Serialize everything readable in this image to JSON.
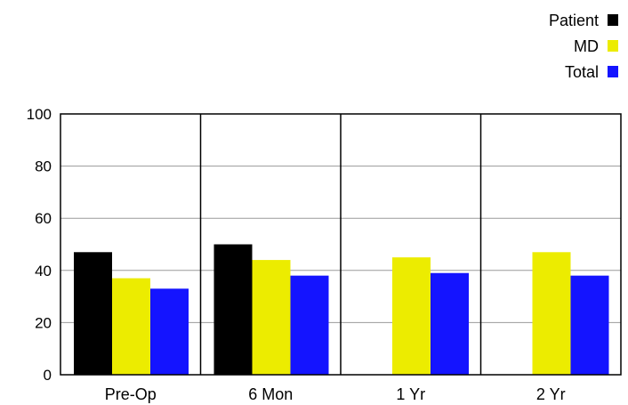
{
  "chart_data": {
    "type": "bar",
    "title": "",
    "xlabel": "",
    "ylabel": "",
    "ylim": [
      0,
      100
    ],
    "yticks": [
      0,
      20,
      40,
      60,
      80,
      100
    ],
    "grid": "horizontal",
    "legend_position": "top-right",
    "categories": [
      "Pre-Op",
      "6 Mon",
      "1 Yr",
      "2 Yr"
    ],
    "series": [
      {
        "name": "Patient",
        "color": "#000000",
        "values": [
          47,
          50,
          null,
          null
        ]
      },
      {
        "name": "MD",
        "color": "#ecec00",
        "values": [
          37,
          44,
          45,
          47
        ]
      },
      {
        "name": "Total",
        "color": "#1414ff",
        "values": [
          33,
          38,
          39,
          38
        ]
      }
    ]
  }
}
